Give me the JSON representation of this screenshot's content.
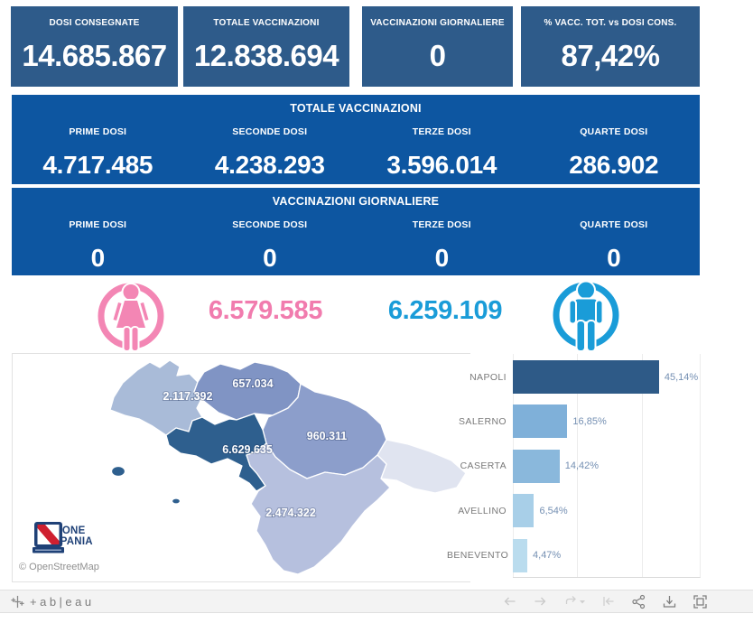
{
  "kpis": [
    {
      "label": "DOSI CONSEGNATE",
      "value": "14.685.867"
    },
    {
      "label": "TOTALE VACCINAZIONI",
      "value": "12.838.694"
    },
    {
      "label": "VACCINAZIONI GIORNALIERE",
      "value": "0"
    },
    {
      "label": "% VACC. TOT. vs DOSI CONS.",
      "value": "87,42%"
    }
  ],
  "totals_band": {
    "title": "TOTALE VACCINAZIONI",
    "columns": [
      {
        "label": "PRIME DOSI",
        "value": "4.717.485"
      },
      {
        "label": "SECONDE DOSI",
        "value": "4.238.293"
      },
      {
        "label": "TERZE DOSI",
        "value": "3.596.014"
      },
      {
        "label": "QUARTE DOSI",
        "value": "286.902"
      }
    ]
  },
  "daily_band": {
    "title": "VACCINAZIONI GIORNALIERE",
    "columns": [
      {
        "label": "PRIME DOSI",
        "value": "0"
      },
      {
        "label": "SECONDE DOSI",
        "value": "0"
      },
      {
        "label": "TERZE DOSI",
        "value": "0"
      },
      {
        "label": "QUARTE DOSI",
        "value": "0"
      }
    ]
  },
  "gender": {
    "female": {
      "value": "6.579.585",
      "color": "#f17cae",
      "icon": "female-icon"
    },
    "male": {
      "value": "6.259.109",
      "color": "#1a9cd8",
      "icon": "male-icon"
    }
  },
  "map": {
    "attribution": "© OpenStreetMap",
    "logo": {
      "line1": "REGIONE",
      "line2": "CAMPANIA"
    },
    "provinces": [
      {
        "name": "Caserta",
        "value": "2.117.392",
        "color": "#a9bbd8"
      },
      {
        "name": "Benevento",
        "value": "657.034",
        "color": "#8094c4"
      },
      {
        "name": "Avellino",
        "value": "960.311",
        "color": "#8c9ecb"
      },
      {
        "name": "Napoli",
        "value": "6.629.635",
        "color": "#2e5f8e"
      },
      {
        "name": "Salerno",
        "value": "2.474.322",
        "color": "#b6c0de"
      }
    ]
  },
  "chart_data": {
    "type": "bar",
    "orientation": "horizontal",
    "title": "",
    "xlabel": "",
    "ylabel": "",
    "categories": [
      "NAPOLI",
      "SALERNO",
      "CASERTA",
      "AVELLINO",
      "BENEVENTO"
    ],
    "values": [
      45.14,
      16.85,
      14.42,
      6.54,
      4.47
    ],
    "value_labels": [
      "45,14%",
      "16,85%",
      "14,42%",
      "6,54%",
      "4,47%"
    ],
    "bar_colors": [
      "#2e5a87",
      "#7fb0d9",
      "#8ab8dc",
      "#a8cfe8",
      "#badcee"
    ],
    "xlim": [
      0,
      58
    ],
    "gridlines": [
      0,
      20,
      40
    ],
    "grid": true,
    "legend": false
  },
  "toolbar": {
    "brand": "+ab|eau",
    "buttons": [
      {
        "name": "undo",
        "enabled": false
      },
      {
        "name": "redo",
        "enabled": false
      },
      {
        "name": "replay",
        "enabled": false
      },
      {
        "name": "reset",
        "enabled": false
      },
      {
        "name": "share",
        "enabled": true
      },
      {
        "name": "download",
        "enabled": true
      },
      {
        "name": "fullscreen",
        "enabled": true
      }
    ]
  }
}
